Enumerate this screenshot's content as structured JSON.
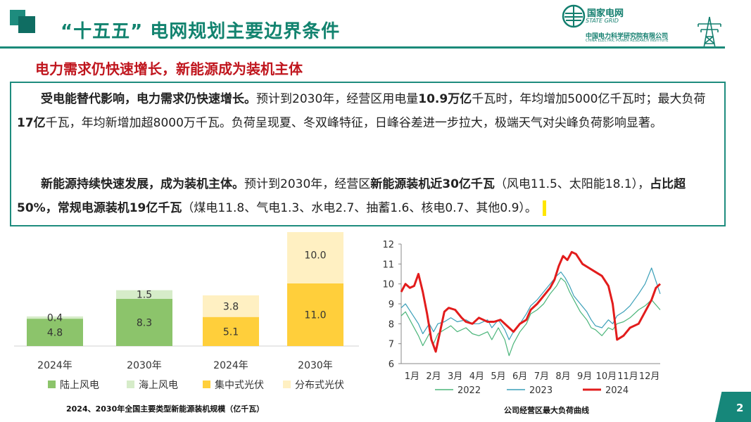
{
  "header": {
    "title": "“十五五” 电网规划主要边界条件",
    "logo_cn": "国家电网",
    "logo_en": "STATE GRID",
    "institute_cn": "中国电力科学研究院有限公司",
    "institute_en": "CHINA ELECTRIC POWER RESEARCH INSTITUTE"
  },
  "subtitle": "电力需求仍快速增长，新能源成为装机主体",
  "body": {
    "p1": {
      "b1": "受电能替代影响，电力需求仍快速增长。",
      "t1": "预计到2030年，经营区用电量",
      "b2": "10.9万亿",
      "t2": "千瓦时，年均增加5000亿千瓦时；最大负荷",
      "b3": "17亿",
      "t3": "千瓦，年均新增加超8000万千瓦。负荷呈现夏、冬双峰特征，日峰谷差进一步拉大，极端天气对尖峰负荷影响显著。"
    },
    "p2": {
      "b1": "新能源持续快速发展，成为装机主体。",
      "t1": "预计到2030年，经营区",
      "b2": "新能源装机近30亿千瓦",
      "t2": "（风电11.5、太阳能18.1），",
      "b3": "占比超50%，常规电源装机19亿千瓦",
      "t3": "（煤电11.8、气电1.3、水电2.7、抽蓄1.6、核电0.7、其他0.9）。"
    }
  },
  "chart_data": [
    {
      "type": "bar",
      "title": "2024、2030年全国主要类型新能源装机规模（亿千瓦）",
      "categories": [
        "2024年",
        "2030年",
        "2024年",
        "2030年"
      ],
      "series": [
        {
          "name": "陆上风电",
          "color": "#8cc46b",
          "values": [
            4.8,
            8.3,
            null,
            null
          ]
        },
        {
          "name": "海上风电",
          "color": "#d6ecc9",
          "values": [
            0.4,
            1.5,
            null,
            null
          ]
        },
        {
          "name": "集中式光伏",
          "color": "#ffcf3b",
          "values": [
            null,
            null,
            5.1,
            11.0
          ]
        },
        {
          "name": "分布式光伏",
          "color": "#fff0c2",
          "values": [
            null,
            null,
            3.8,
            10.0
          ]
        }
      ],
      "data_labels": [
        [
          "4.8",
          "8.3",
          "5.1",
          "11.0"
        ],
        [
          "0.4",
          "1.5",
          "3.8",
          "10.0"
        ]
      ],
      "legend": "bottom",
      "ylim": [
        0,
        21
      ]
    },
    {
      "type": "line",
      "title": "公司经营区最大负荷曲线",
      "x_ticks": [
        "1月",
        "2月",
        "3月",
        "4月",
        "5月",
        "6月",
        "7月",
        "8月",
        "9月",
        "10月",
        "11月",
        "12月"
      ],
      "y_ticks": [
        "6",
        "7",
        "8",
        "9",
        "10",
        "11",
        "12"
      ],
      "ylim": [
        6,
        12
      ],
      "xlim": [
        0,
        12
      ],
      "legend": "bottom",
      "grid": false,
      "series": [
        {
          "name": "2022",
          "color": "#4bb57a",
          "x": [
            0,
            0.2,
            0.5,
            0.8,
            1.0,
            1.3,
            1.5,
            1.7,
            2.0,
            2.3,
            2.6,
            3.0,
            3.3,
            3.6,
            4.0,
            4.2,
            4.5,
            4.8,
            5.0,
            5.2,
            5.5,
            5.8,
            6.0,
            6.3,
            6.6,
            6.9,
            7.2,
            7.4,
            7.6,
            7.8,
            8.0,
            8.3,
            8.6,
            8.8,
            9.0,
            9.3,
            9.6,
            9.8,
            10.0,
            10.3,
            10.6,
            11.0,
            11.3,
            11.6,
            12.0
          ],
          "y": [
            8.4,
            8.6,
            8.0,
            7.4,
            6.9,
            7.5,
            7.0,
            7.5,
            7.7,
            7.9,
            7.6,
            7.8,
            7.5,
            7.4,
            7.6,
            7.2,
            7.8,
            7.2,
            6.4,
            7.0,
            7.6,
            8.0,
            8.5,
            8.7,
            9.0,
            9.5,
            9.9,
            10.3,
            10.1,
            9.6,
            9.2,
            8.6,
            8.2,
            7.8,
            7.7,
            7.4,
            7.8,
            7.7,
            8.0,
            8.1,
            8.3,
            8.7,
            8.9,
            9.2,
            8.7
          ]
        },
        {
          "name": "2023",
          "color": "#3a9fb8",
          "x": [
            0,
            0.2,
            0.5,
            0.8,
            1.0,
            1.3,
            1.5,
            1.7,
            2.0,
            2.3,
            2.6,
            3.0,
            3.3,
            3.6,
            4.0,
            4.2,
            4.5,
            4.8,
            5.0,
            5.2,
            5.5,
            5.8,
            6.0,
            6.3,
            6.6,
            6.9,
            7.2,
            7.4,
            7.6,
            7.8,
            8.0,
            8.3,
            8.6,
            8.8,
            9.0,
            9.3,
            9.6,
            9.8,
            10.0,
            10.3,
            10.6,
            11.0,
            11.3,
            11.6,
            12.0
          ],
          "y": [
            8.8,
            9.0,
            8.5,
            8.0,
            7.5,
            8.0,
            7.6,
            8.0,
            8.1,
            8.3,
            8.1,
            8.2,
            8.0,
            8.0,
            8.2,
            7.8,
            8.2,
            7.7,
            7.2,
            7.6,
            8.0,
            8.5,
            8.9,
            9.2,
            9.6,
            10.0,
            10.4,
            10.6,
            10.3,
            9.9,
            9.4,
            9.0,
            8.6,
            8.2,
            7.9,
            7.8,
            8.2,
            8.0,
            8.4,
            8.6,
            8.9,
            9.5,
            10.0,
            10.8,
            9.5
          ]
        },
        {
          "name": "2024",
          "color": "#e21c1c",
          "x": [
            0,
            0.2,
            0.4,
            0.6,
            0.8,
            1.0,
            1.2,
            1.4,
            1.6,
            1.8,
            2.0,
            2.2,
            2.5,
            2.8,
            3.0,
            3.3,
            3.6,
            4.0,
            4.3,
            4.6,
            5.0,
            5.2,
            5.5,
            5.8,
            6.0,
            6.3,
            6.6,
            6.9,
            7.1,
            7.3,
            7.5,
            7.7,
            7.9,
            8.1,
            8.4,
            8.7,
            9.0,
            9.3,
            9.6,
            9.8,
            10.0,
            10.3,
            10.6,
            11.0,
            11.3,
            11.6,
            11.8,
            12.0
          ],
          "y": [
            9.6,
            10.0,
            9.8,
            9.9,
            10.5,
            9.6,
            8.5,
            7.2,
            6.6,
            7.6,
            8.6,
            8.8,
            8.7,
            8.3,
            8.1,
            8.0,
            8.3,
            8.1,
            8.1,
            8.2,
            7.8,
            7.6,
            8.0,
            8.2,
            8.7,
            9.0,
            9.4,
            9.8,
            10.2,
            10.9,
            11.4,
            11.2,
            11.6,
            11.5,
            11.0,
            10.8,
            10.6,
            10.4,
            9.9,
            9.0,
            7.2,
            7.4,
            7.8,
            8.0,
            8.6,
            9.2,
            9.8,
            10.0
          ]
        }
      ]
    }
  ],
  "footer": {
    "page_number": "2"
  }
}
